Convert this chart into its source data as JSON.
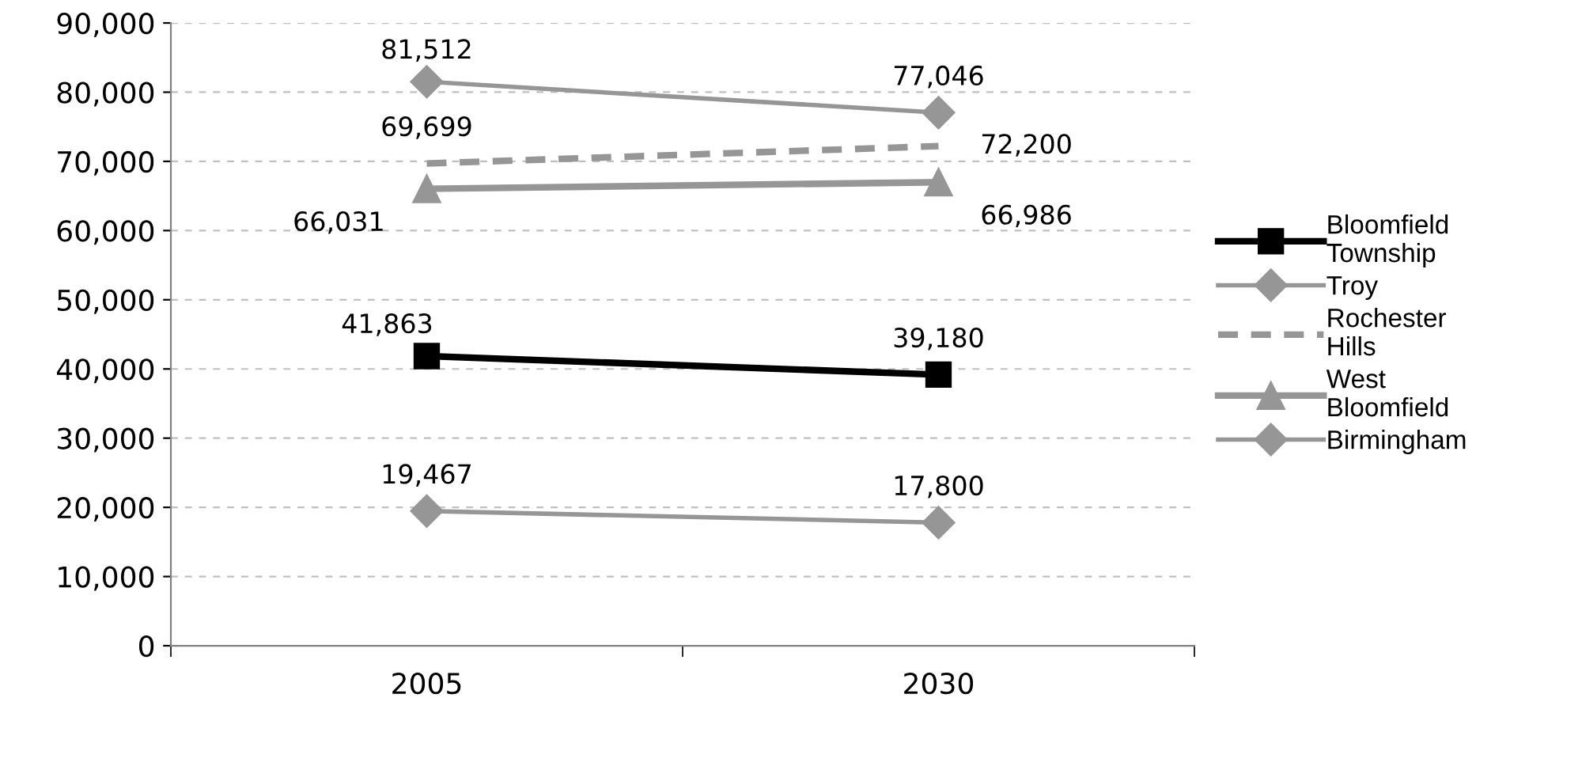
{
  "chart_data": {
    "type": "line",
    "categories": [
      "2005",
      "2030"
    ],
    "series": [
      {
        "name": "Bloomfield Township",
        "color": "#000000",
        "values": [
          41863,
          39180
        ],
        "value_labels": [
          "41,863",
          "39,180"
        ],
        "marker": "square",
        "line_style": "solid"
      },
      {
        "name": "Troy",
        "color": "#969696",
        "values": [
          81512,
          77046
        ],
        "value_labels": [
          "81,512",
          "77,046"
        ],
        "marker": "diamond",
        "line_style": "solid"
      },
      {
        "name": "Rochester Hills",
        "color": "#969696",
        "values": [
          69699,
          72200
        ],
        "value_labels": [
          "69,699",
          "72,200"
        ],
        "marker": "none",
        "line_style": "dashed"
      },
      {
        "name": "West Bloomfield",
        "color": "#969696",
        "values": [
          66031,
          66986
        ],
        "value_labels": [
          "66,031",
          "66,986"
        ],
        "marker": "triangle",
        "line_style": "solid"
      },
      {
        "name": "Birmingham",
        "color": "#969696",
        "values": [
          19467,
          17800
        ],
        "value_labels": [
          "19,467",
          "17,800"
        ],
        "marker": "diamond",
        "line_style": "solid"
      }
    ],
    "ylim": [
      0,
      90000
    ],
    "yticks": [
      0,
      {
        "value": 10000,
        "label": "10,000"
      },
      {
        "value": 20000,
        "label": "20,000"
      },
      {
        "value": 30000,
        "label": "30,000"
      },
      {
        "value": 40000,
        "label": "40,000"
      },
      {
        "value": 50000,
        "label": "50,000"
      },
      {
        "value": 60000,
        "label": "60,000"
      },
      {
        "value": 70000,
        "label": "70,000"
      },
      {
        "value": 80000,
        "label": "80,000"
      },
      {
        "value": 90000,
        "label": "90,000"
      }
    ],
    "grid": "y",
    "legend": "right"
  }
}
